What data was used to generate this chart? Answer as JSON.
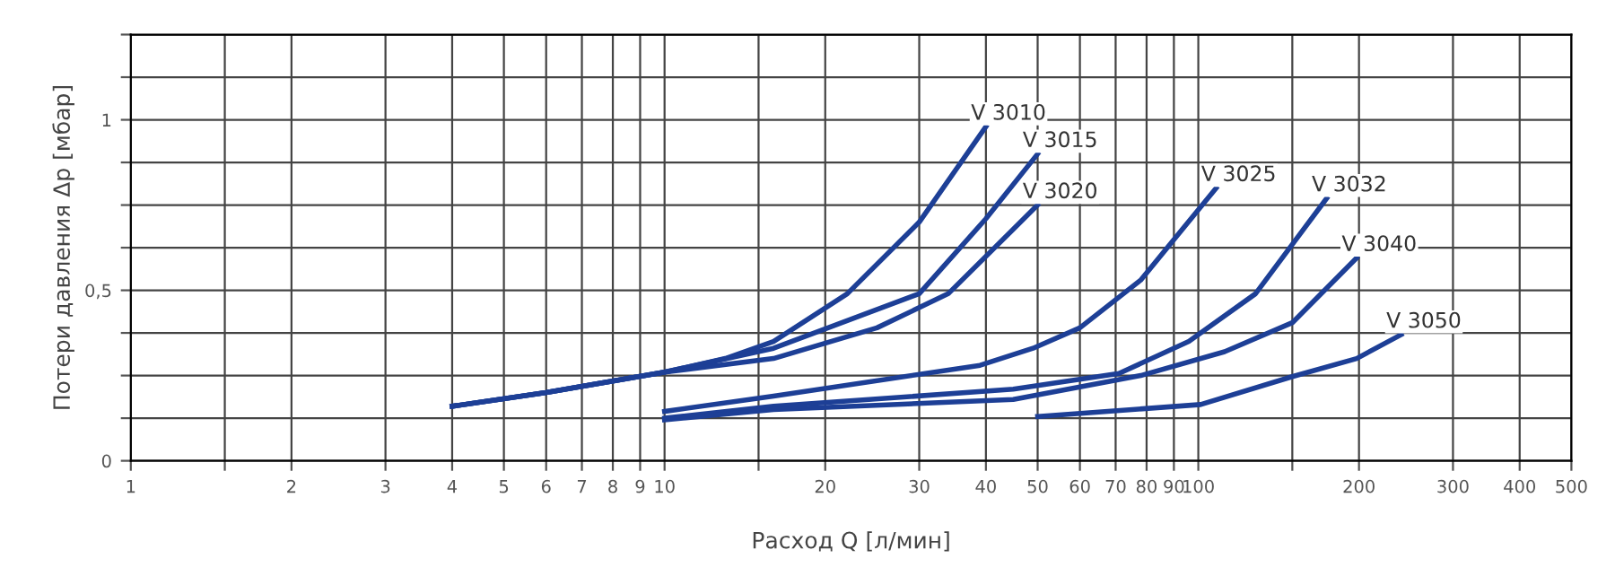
{
  "chart_data": {
    "type": "line",
    "xlabel": "Расход Q [л/мин]",
    "ylabel": "Потери давления Δp [мбар]",
    "log": "x",
    "grid": true,
    "legend": false,
    "marker": "none",
    "line_style": "solid",
    "xlim": [
      1,
      500
    ],
    "xticks": [
      1,
      {
        "value": 1.5,
        "label": null
      },
      2,
      3,
      4,
      5,
      6,
      7,
      8,
      9,
      10,
      {
        "value": 15,
        "label": null
      },
      20,
      30,
      40,
      50,
      60,
      70,
      80,
      90,
      100,
      {
        "value": 150,
        "label": null
      },
      200,
      300,
      400,
      500
    ],
    "ylim": [
      0,
      1.25
    ],
    "yticks": [
      0,
      {
        "value": 0.125,
        "label": null
      },
      {
        "value": 0.25,
        "label": null
      },
      {
        "value": 0.375,
        "label": null
      },
      {
        "value": 0.5,
        "label": "0,5"
      },
      {
        "value": 0.625,
        "label": null
      },
      {
        "value": 0.75,
        "label": null
      },
      {
        "value": 0.875,
        "label": null
      },
      1,
      {
        "value": 1.125,
        "label": null
      },
      {
        "value": 1.25,
        "label": null
      }
    ],
    "series": [
      {
        "name": "V 3010",
        "color": "#1d3f96",
        "x": [
          4,
          6,
          10,
          13,
          16,
          22,
          30,
          40
        ],
        "values": [
          0.16,
          0.2,
          0.26,
          0.3,
          0.35,
          0.49,
          0.7,
          0.98
        ]
      },
      {
        "name": "V 3015",
        "color": "#1d3f96",
        "x": [
          4,
          6,
          10,
          16,
          30,
          40,
          50
        ],
        "values": [
          0.16,
          0.2,
          0.26,
          0.33,
          0.49,
          0.71,
          0.9
        ]
      },
      {
        "name": "V 3020",
        "color": "#1d3f96",
        "x": [
          4,
          6,
          10,
          16,
          25,
          34,
          50
        ],
        "values": [
          0.16,
          0.2,
          0.26,
          0.3,
          0.39,
          0.49,
          0.75
        ]
      },
      {
        "name": "V 3025",
        "color": "#1d3f96",
        "x": [
          10,
          16,
          39,
          49,
          60,
          78,
          108
        ],
        "values": [
          0.145,
          0.19,
          0.28,
          0.33,
          0.39,
          0.53,
          0.8
        ]
      },
      {
        "name": "V 3032",
        "color": "#1d3f96",
        "x": [
          10,
          16,
          45,
          71,
          96,
          128,
          174
        ],
        "values": [
          0.125,
          0.16,
          0.21,
          0.256,
          0.35,
          0.49,
          0.77
        ]
      },
      {
        "name": "V 3040",
        "color": "#1d3f96",
        "x": [
          10,
          16,
          45,
          78,
          112,
          150,
          198
        ],
        "values": [
          0.12,
          0.15,
          0.18,
          0.25,
          0.32,
          0.405,
          0.595
        ]
      },
      {
        "name": "V 3050",
        "color": "#1d3f96",
        "x": [
          50,
          101,
          150,
          198,
          240
        ],
        "values": [
          0.13,
          0.165,
          0.247,
          0.3,
          0.37
        ]
      }
    ]
  }
}
